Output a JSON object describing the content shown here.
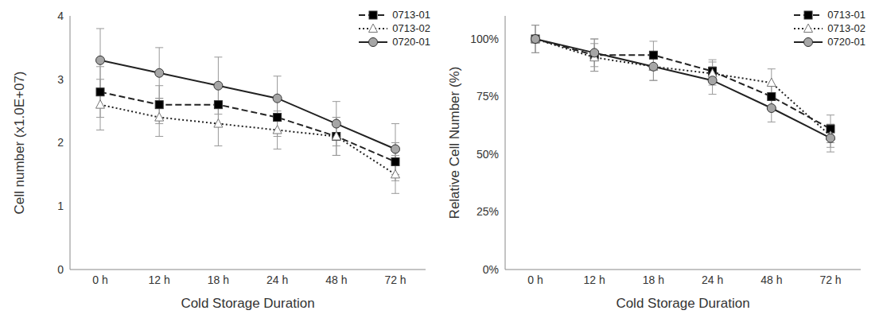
{
  "chart_data": [
    {
      "type": "line",
      "ylabel": "Cell number (x1.0E+07)",
      "xlabel": "Cold Storage Duration",
      "categories": [
        "0 h",
        "12 h",
        "18 h",
        "24 h",
        "48 h",
        "72 h"
      ],
      "ylim": [
        0,
        4
      ],
      "yticks": [
        0,
        1,
        2,
        3,
        4
      ],
      "grid": false,
      "legend": "upper right",
      "series": [
        {
          "name": "0713-01",
          "color": "#000000",
          "marker": "square",
          "line_style": "dashed",
          "values": [
            2.8,
            2.6,
            2.6,
            2.4,
            2.1,
            1.7
          ],
          "errors": [
            0.4,
            0.3,
            0.3,
            0.3,
            0.3,
            0.3
          ]
        },
        {
          "name": "0713-02",
          "color": "#ffffff",
          "marker": "triangle",
          "line_style": "dotted",
          "values": [
            2.6,
            2.4,
            2.3,
            2.2,
            2.1,
            1.5
          ],
          "errors": [
            0.4,
            0.3,
            0.35,
            0.3,
            0.3,
            0.3
          ]
        },
        {
          "name": "0720-01",
          "color": "#a6a6a6",
          "marker": "circle",
          "line_style": "solid",
          "values": [
            3.3,
            3.1,
            2.9,
            2.7,
            2.3,
            1.9
          ],
          "errors": [
            0.5,
            0.4,
            0.45,
            0.35,
            0.35,
            0.4
          ]
        }
      ]
    },
    {
      "type": "line",
      "ylabel": "Relative Cell Number (%)",
      "xlabel": "Cold Storage Duration",
      "categories": [
        "0 h",
        "12 h",
        "18 h",
        "24 h",
        "48 h",
        "72 h"
      ],
      "ylim": [
        0,
        110
      ],
      "yticks": [
        {
          "value": 0,
          "label": "0%"
        },
        {
          "value": 25,
          "label": "25%"
        },
        {
          "value": 50,
          "label": "50%"
        },
        {
          "value": 75,
          "label": "75%"
        },
        {
          "value": 100,
          "label": "100%"
        }
      ],
      "grid": false,
      "legend": "upper right",
      "series": [
        {
          "name": "0713-01",
          "color": "#000000",
          "marker": "square",
          "line_style": "dashed",
          "values": [
            100,
            93,
            93,
            86,
            75,
            61
          ],
          "errors": [
            6,
            7,
            6,
            5,
            5,
            6
          ]
        },
        {
          "name": "0713-02",
          "color": "#ffffff",
          "marker": "triangle",
          "line_style": "dotted",
          "values": [
            100,
            92,
            88,
            85,
            81,
            58
          ],
          "errors": [
            6,
            6,
            6,
            5,
            6,
            5
          ]
        },
        {
          "name": "0720-01",
          "color": "#a6a6a6",
          "marker": "circle",
          "line_style": "solid",
          "values": [
            100,
            94,
            88,
            82,
            70,
            57
          ],
          "errors": [
            6,
            6,
            6,
            6,
            6,
            6
          ]
        }
      ]
    }
  ]
}
